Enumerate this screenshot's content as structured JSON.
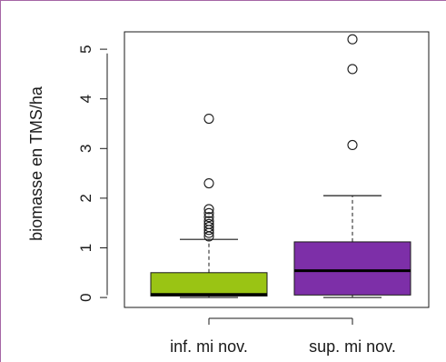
{
  "chart_data": {
    "type": "boxplot",
    "title": "",
    "xlabel": "",
    "ylabel": "biomasse en TMS/ha",
    "ylim": [
      -0.2,
      5.35
    ],
    "yticks": [
      0,
      1,
      2,
      3,
      4,
      5
    ],
    "ytick_labels": [
      "0",
      "1",
      "2",
      "3",
      "4",
      "5"
    ],
    "grid": false,
    "legend": "none",
    "categories": [
      "inf. mi nov.",
      "sup. mi nov."
    ],
    "boxes": [
      {
        "category": "inf. mi nov.",
        "color": "#9ac414",
        "min": 0.0,
        "q1": 0.03,
        "median": 0.06,
        "q3": 0.5,
        "max": 1.17,
        "outliers": [
          1.23,
          1.3,
          1.36,
          1.42,
          1.48,
          1.54,
          1.62,
          1.7,
          1.78,
          2.3,
          3.6
        ]
      },
      {
        "category": "sup. mi nov.",
        "color": "#7d2fa8",
        "min": 0.0,
        "q1": 0.05,
        "median": 0.54,
        "q3": 1.12,
        "max": 2.05,
        "outliers": [
          3.07,
          4.6,
          5.2
        ]
      }
    ]
  }
}
